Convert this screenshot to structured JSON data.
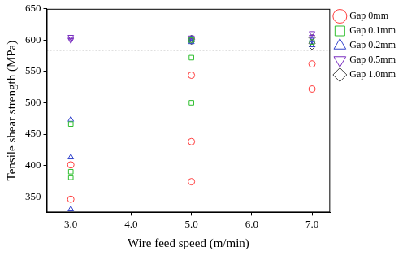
{
  "chart_data": {
    "type": "scatter",
    "x_label": "Wire feed speed (m/min)",
    "y_label": "Tensile shear strength (MPa)",
    "xlim": [
      2.6,
      7.3
    ],
    "xticks": [
      {
        "value": 3,
        "label": "3.0"
      },
      {
        "value": 4,
        "label": "4.0"
      },
      {
        "value": 5,
        "label": "5.0"
      },
      {
        "value": 6,
        "label": "6.0"
      },
      {
        "value": 7,
        "label": "7.0"
      }
    ],
    "ylim": [
      325,
      650
    ],
    "yticks": [
      350,
      400,
      450,
      500,
      550,
      600,
      650
    ],
    "grid": false,
    "legend": "right",
    "reference_line": 584,
    "series": [
      {
        "name": "Gap 0mm",
        "color": "#ff3b3b",
        "marker": "circle",
        "x": [
          3,
          3,
          5,
          5,
          5,
          7,
          7
        ],
        "values": [
          401,
          346,
          544,
          438,
          374,
          562,
          522
        ]
      },
      {
        "name": "Gap 0.1mm",
        "color": "#2fbf2f",
        "marker": "square",
        "x": [
          3,
          3,
          3,
          5,
          5,
          5,
          7
        ],
        "values": [
          466,
          390,
          381,
          572,
          500,
          600,
          597
        ]
      },
      {
        "name": "Gap 0.2mm",
        "color": "#3344cc",
        "marker": "triangle",
        "x": [
          3,
          3,
          3,
          5,
          5,
          7,
          7
        ],
        "values": [
          473,
          413,
          330,
          597,
          602,
          592,
          600
        ]
      },
      {
        "name": "Gap 0.5mm",
        "color": "#7a2fc0",
        "marker": "triangle_down",
        "x": [
          3,
          3,
          3,
          5,
          5,
          7,
          7
        ],
        "values": [
          605,
          600,
          602,
          604,
          600,
          611,
          605
        ]
      },
      {
        "name": "Gap 1.0mm",
        "color": "#404040",
        "marker": "diamond",
        "x": [
          5,
          5,
          5,
          7,
          7,
          7
        ],
        "values": [
          603,
          598,
          601,
          595,
          590,
          604
        ]
      }
    ]
  }
}
